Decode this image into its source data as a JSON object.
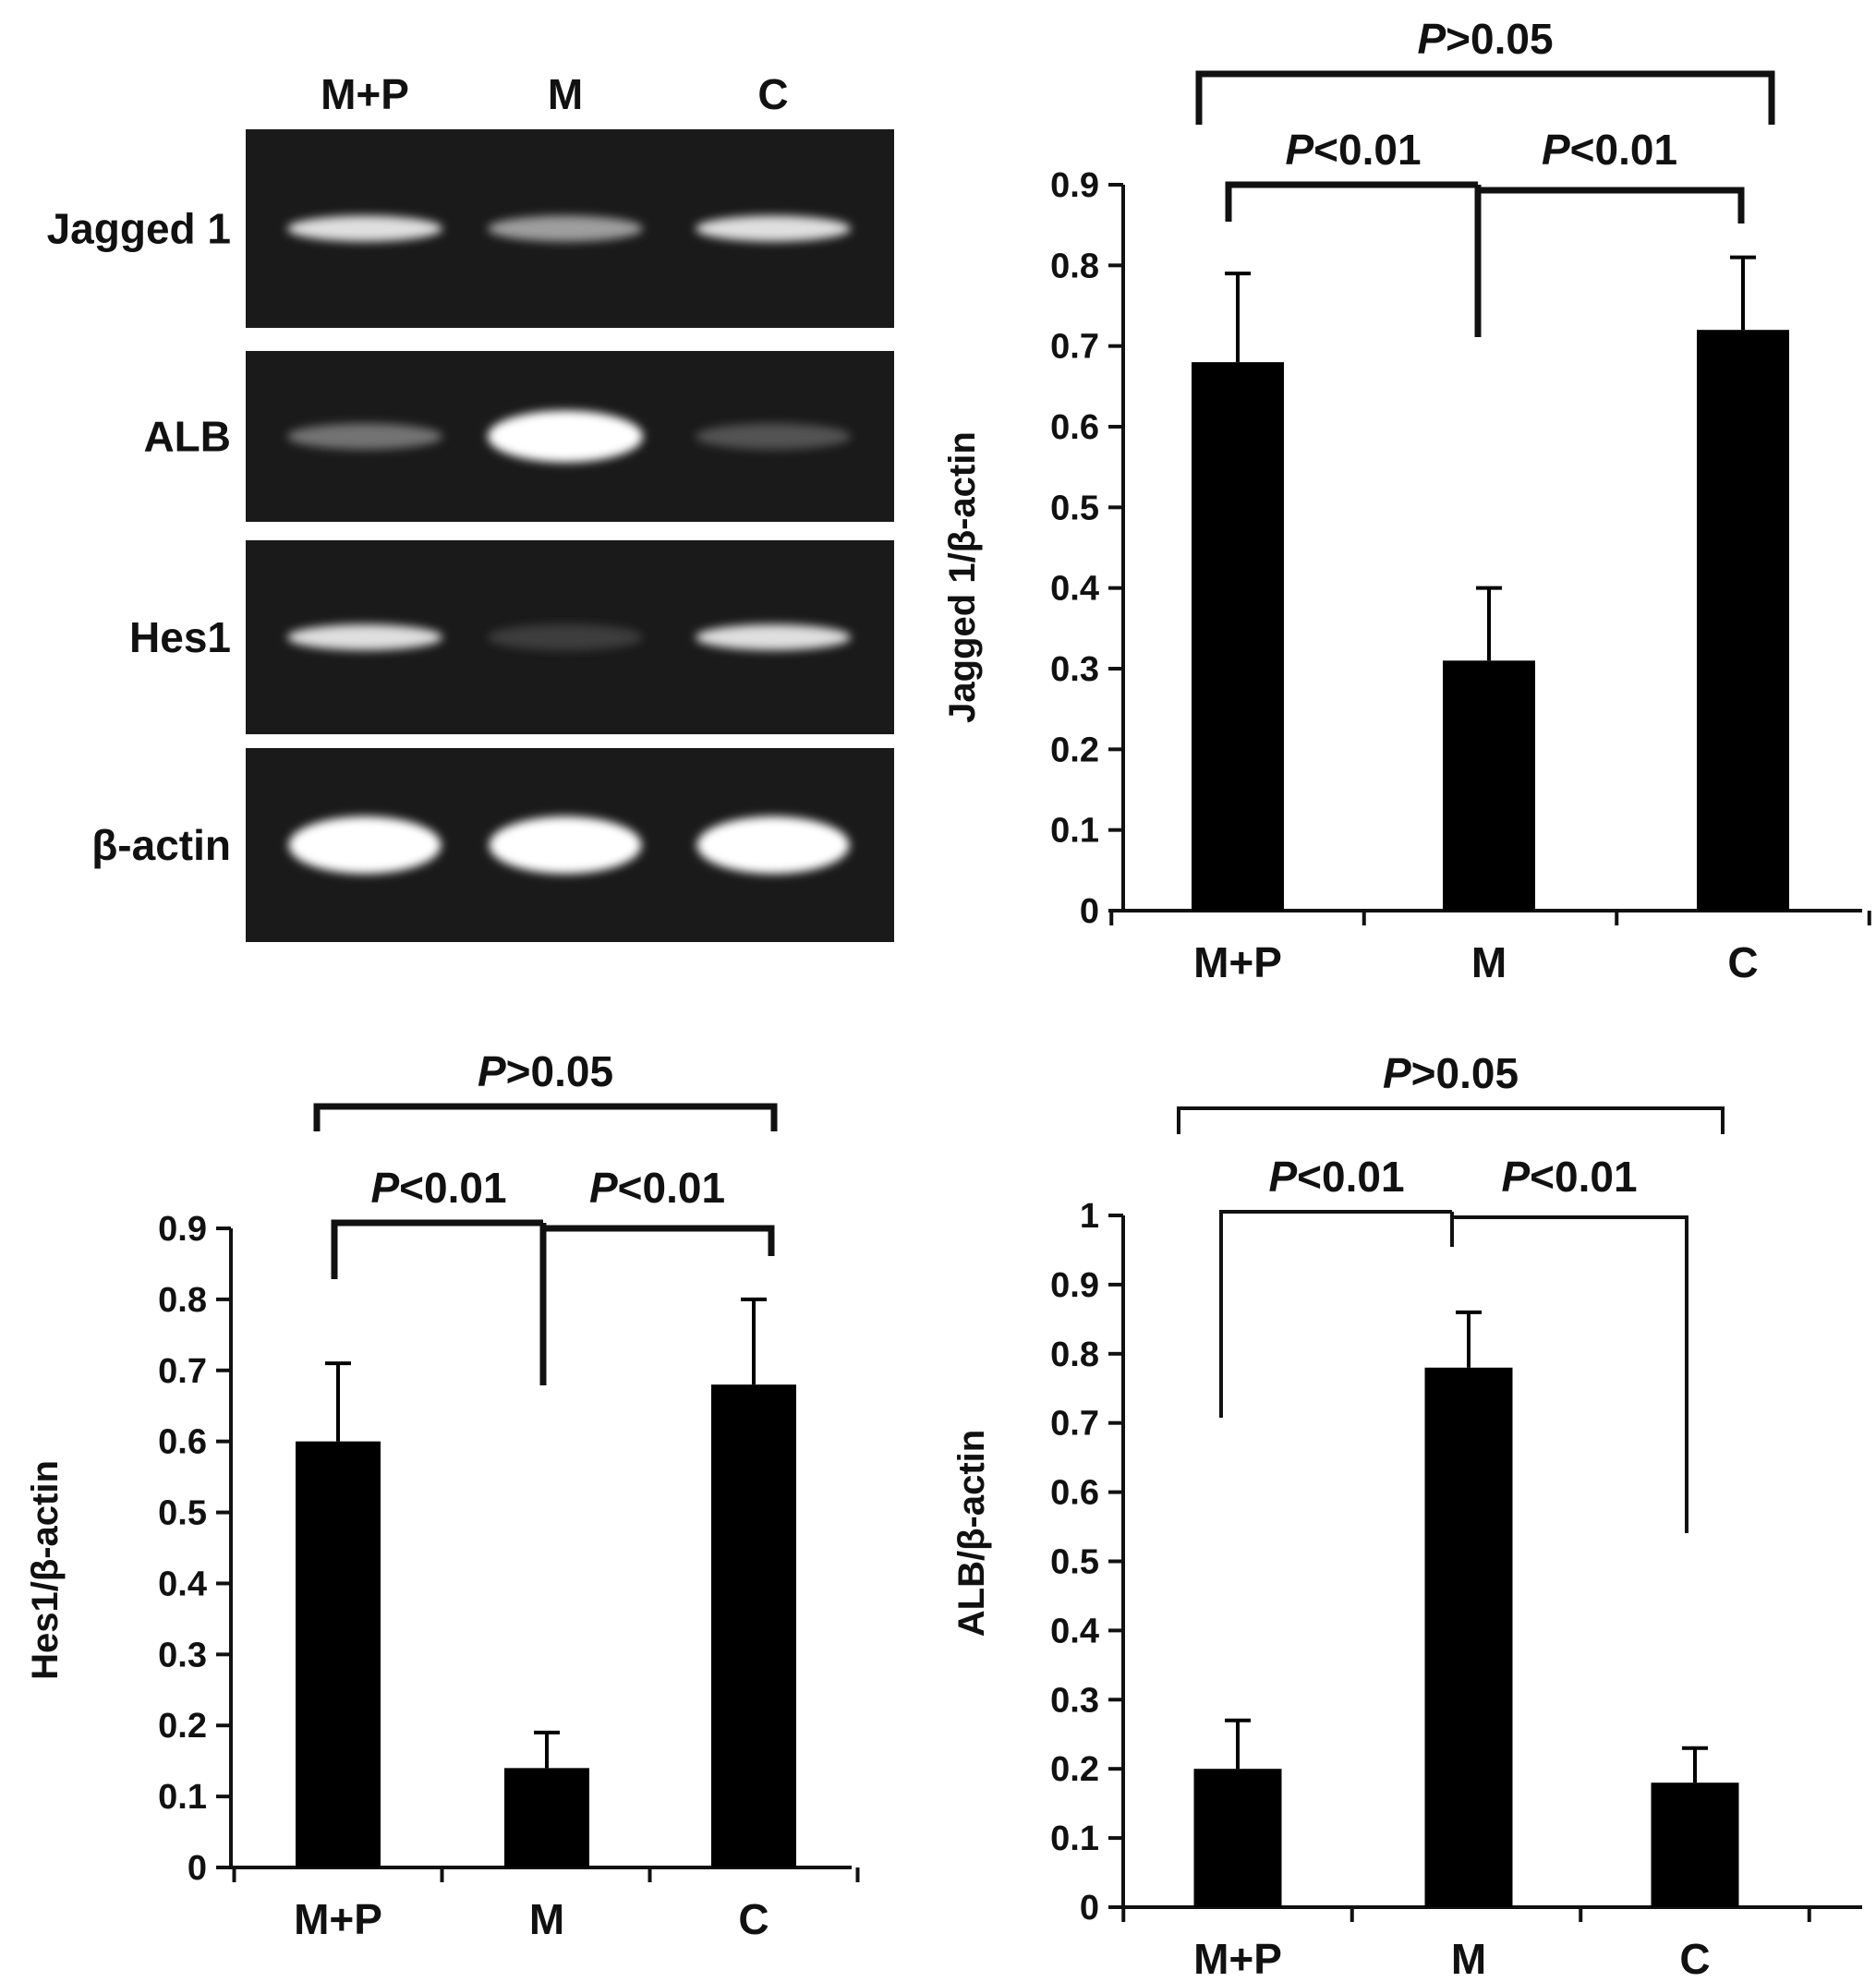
{
  "gel": {
    "lanes": [
      "M+P",
      "M",
      "C"
    ],
    "rows": [
      {
        "label": "Jagged 1",
        "intensity": [
          0.85,
          0.55,
          0.85
        ]
      },
      {
        "label": "ALB",
        "intensity": [
          0.35,
          1.0,
          0.2
        ]
      },
      {
        "label": "Hes1",
        "intensity": [
          0.85,
          0.1,
          0.85
        ]
      },
      {
        "label": "β-actin",
        "intensity": [
          1.0,
          1.0,
          1.0
        ]
      }
    ]
  },
  "chart_data": [
    {
      "type": "bar",
      "panel": "top-right",
      "categories": [
        "M+P",
        "M",
        "C"
      ],
      "values": [
        0.68,
        0.31,
        0.72
      ],
      "errors": [
        0.11,
        0.09,
        0.09
      ],
      "ylabel": "Jagged 1/β-actin",
      "ylim": [
        0,
        0.9
      ],
      "yticks": [
        "0",
        "0.1",
        "0.2",
        "0.3",
        "0.4",
        "0.5",
        "0.6",
        "0.7",
        "0.8",
        "0.9"
      ],
      "annotations": [
        {
          "prefix": "P",
          "text": ">0.05",
          "between": [
            "M+P",
            "C"
          ]
        },
        {
          "prefix": "P",
          "text": "<0.01",
          "between": [
            "M+P",
            "M"
          ]
        },
        {
          "prefix": "P",
          "text": "<0.01",
          "between": [
            "M",
            "C"
          ]
        }
      ]
    },
    {
      "type": "bar",
      "panel": "bottom-left",
      "categories": [
        "M+P",
        "M",
        "C"
      ],
      "values": [
        0.6,
        0.14,
        0.68
      ],
      "errors": [
        0.11,
        0.05,
        0.12
      ],
      "ylabel": "Hes1/β-actin",
      "ylim": [
        0,
        0.9
      ],
      "yticks": [
        "0",
        "0.1",
        "0.2",
        "0.3",
        "0.4",
        "0.5",
        "0.6",
        "0.7",
        "0.8",
        "0.9"
      ],
      "annotations": [
        {
          "prefix": "P",
          "text": ">0.05",
          "between": [
            "M+P",
            "C"
          ]
        },
        {
          "prefix": "P",
          "text": "<0.01",
          "between": [
            "M+P",
            "M"
          ]
        },
        {
          "prefix": "P",
          "text": "<0.01",
          "between": [
            "M",
            "C"
          ]
        }
      ]
    },
    {
      "type": "bar",
      "panel": "bottom-right",
      "categories": [
        "M+P",
        "M",
        "C"
      ],
      "values": [
        0.2,
        0.78,
        0.18
      ],
      "errors": [
        0.07,
        0.08,
        0.05
      ],
      "ylabel": "ALB/β-actin",
      "ylim": [
        0,
        1
      ],
      "yticks": [
        "0",
        "0.1",
        "0.2",
        "0.3",
        "0.4",
        "0.5",
        "0.6",
        "0.7",
        "0.8",
        "0.9",
        "1"
      ],
      "annotations": [
        {
          "prefix": "P",
          "text": ">0.05",
          "between": [
            "M+P",
            "C"
          ]
        },
        {
          "prefix": "P",
          "text": "<0.01",
          "between": [
            "M+P",
            "M"
          ]
        },
        {
          "prefix": "P",
          "text": "<0.01",
          "between": [
            "M",
            "C"
          ]
        }
      ]
    }
  ]
}
